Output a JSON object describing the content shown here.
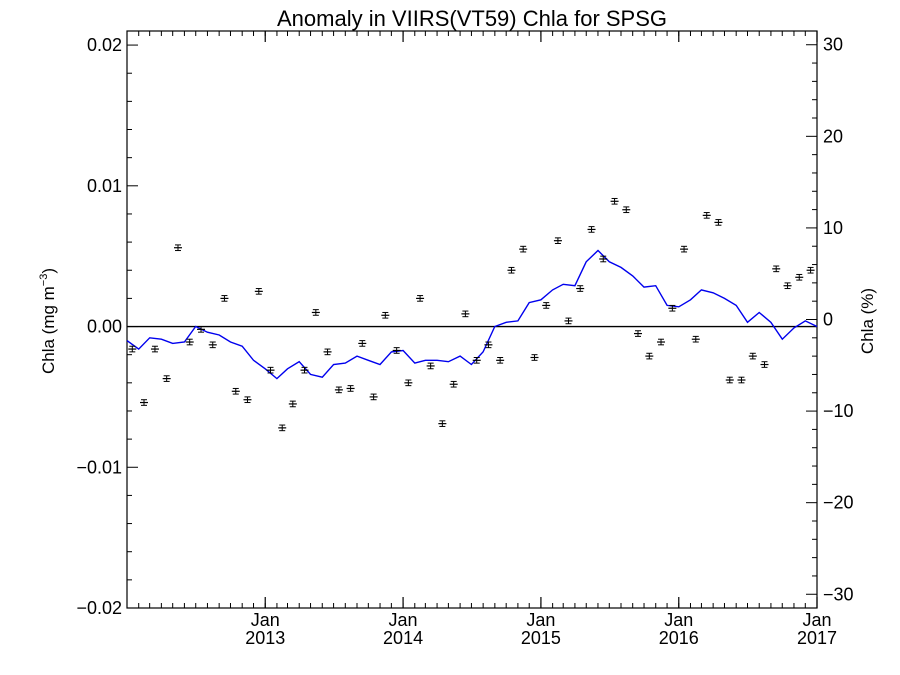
{
  "chart_data": {
    "type": "line",
    "title": "Anomaly in VIIRS(VT59) Chla for SPSG",
    "ylabel": "Chla (mg m",
    "ylabel_superscript": "−3",
    "ylabel_close": ")",
    "y2label": "Chla (%)",
    "xlim": [
      "2012-01-01",
      "2017-01-01"
    ],
    "ylim": [
      -0.02,
      0.021
    ],
    "y2lim": [
      -31.5,
      31.5
    ],
    "x_ticks": [
      {
        "date": "2013-01-01",
        "month": "Jan",
        "year": "2013"
      },
      {
        "date": "2014-01-01",
        "month": "Jan",
        "year": "2014"
      },
      {
        "date": "2015-01-01",
        "month": "Jan",
        "year": "2015"
      },
      {
        "date": "2016-01-01",
        "month": "Jan",
        "year": "2016"
      },
      {
        "date": "2017-01-01",
        "month": "Jan",
        "year": "2017"
      }
    ],
    "y_ticks": [
      {
        "value": 0.02,
        "label": "0.02"
      },
      {
        "value": 0.01,
        "label": "0.01"
      },
      {
        "value": 0.0,
        "label": "0.00"
      },
      {
        "value": -0.01,
        "label": "−0.01"
      },
      {
        "value": -0.02,
        "label": "−0.02"
      }
    ],
    "y2_ticks": [
      {
        "value": 30,
        "label": "30"
      },
      {
        "value": 20,
        "label": "20"
      },
      {
        "value": 10,
        "label": "10"
      },
      {
        "value": 0,
        "label": "0"
      },
      {
        "value": -10,
        "label": "−10"
      },
      {
        "value": -20,
        "label": "−20"
      },
      {
        "value": -30,
        "label": "−30"
      }
    ],
    "reference_line_y": 0,
    "grid": false,
    "legend": "none",
    "series": [
      {
        "kind": "line",
        "color": "#0000ee",
        "x": [
          "2012-01-01",
          "2012-02-01",
          "2012-03-01",
          "2012-04-01",
          "2012-05-01",
          "2012-06-01",
          "2012-07-01",
          "2012-08-01",
          "2012-09-01",
          "2012-10-01",
          "2012-11-01",
          "2012-12-01",
          "2013-01-01",
          "2013-02-01",
          "2013-03-01",
          "2013-04-01",
          "2013-05-01",
          "2013-06-01",
          "2013-07-01",
          "2013-08-01",
          "2013-09-01",
          "2013-10-01",
          "2013-11-01",
          "2013-12-01",
          "2014-01-01",
          "2014-02-01",
          "2014-03-01",
          "2014-04-01",
          "2014-05-01",
          "2014-06-01",
          "2014-07-01",
          "2014-08-01",
          "2014-09-01",
          "2014-10-01",
          "2014-11-01",
          "2014-12-01",
          "2015-01-01",
          "2015-02-01",
          "2015-03-01",
          "2015-04-01",
          "2015-05-01",
          "2015-06-01",
          "2015-07-01",
          "2015-08-01",
          "2015-09-01",
          "2015-10-01",
          "2015-11-01",
          "2015-12-01",
          "2016-01-01",
          "2016-02-01",
          "2016-03-01",
          "2016-04-01",
          "2016-05-01",
          "2016-06-01",
          "2016-07-01",
          "2016-08-01",
          "2016-09-01",
          "2016-10-01",
          "2016-11-01",
          "2016-12-01",
          "2017-01-01"
        ],
        "y": [
          -0.001,
          -0.0016,
          -0.0008,
          -0.0009,
          -0.0012,
          -0.0011,
          0.0,
          -0.0004,
          -0.0006,
          -0.0011,
          -0.0014,
          -0.0024,
          -0.003,
          -0.0037,
          -0.003,
          -0.0025,
          -0.0034,
          -0.0036,
          -0.0027,
          -0.0026,
          -0.0021,
          -0.0024,
          -0.0027,
          -0.0018,
          -0.0017,
          -0.0026,
          -0.0024,
          -0.0024,
          -0.0025,
          -0.0021,
          -0.0027,
          -0.0018,
          0.0,
          0.0003,
          0.0004,
          0.0017,
          0.0019,
          0.0026,
          0.003,
          0.0029,
          0.0046,
          0.0054,
          0.0046,
          0.0042,
          0.0036,
          0.0028,
          0.0029,
          0.0015,
          0.0014,
          0.0019,
          0.0026,
          0.0024,
          0.002,
          0.0015,
          0.0003,
          0.001,
          0.0003,
          -0.0009,
          -0.0001,
          0.0004,
          0.0
        ]
      },
      {
        "kind": "points_with_error_bars",
        "color": "#000000",
        "error": 0.0002,
        "x": [
          "2012-01-15",
          "2012-02-15",
          "2012-03-15",
          "2012-04-15",
          "2012-05-15",
          "2012-06-15",
          "2012-07-15",
          "2012-08-15",
          "2012-09-15",
          "2012-10-15",
          "2012-11-15",
          "2012-12-15",
          "2013-01-15",
          "2013-02-15",
          "2013-03-15",
          "2013-04-15",
          "2013-05-15",
          "2013-06-15",
          "2013-07-15",
          "2013-08-15",
          "2013-09-15",
          "2013-10-15",
          "2013-11-15",
          "2013-12-15",
          "2014-01-15",
          "2014-02-15",
          "2014-03-15",
          "2014-04-15",
          "2014-05-15",
          "2014-06-15",
          "2014-07-15",
          "2014-08-15",
          "2014-09-15",
          "2014-10-15",
          "2014-11-15",
          "2014-12-15",
          "2015-01-15",
          "2015-02-15",
          "2015-03-15",
          "2015-04-15",
          "2015-05-15",
          "2015-06-15",
          "2015-07-15",
          "2015-08-15",
          "2015-09-15",
          "2015-10-15",
          "2015-11-15",
          "2015-12-15",
          "2016-01-15",
          "2016-02-15",
          "2016-03-15",
          "2016-04-15",
          "2016-05-15",
          "2016-06-15",
          "2016-07-15",
          "2016-08-15",
          "2016-09-15",
          "2016-10-15",
          "2016-11-15",
          "2016-12-15"
        ],
        "y": [
          -0.0016,
          -0.0054,
          -0.0016,
          -0.0037,
          0.0056,
          -0.0011,
          -0.0002,
          -0.0013,
          0.002,
          -0.0046,
          -0.0052,
          0.0025,
          -0.0031,
          -0.0072,
          -0.0055,
          -0.0031,
          0.001,
          -0.0018,
          -0.0045,
          -0.0044,
          -0.0012,
          -0.005,
          0.0008,
          -0.0017,
          -0.004,
          0.002,
          -0.0028,
          -0.0069,
          -0.0041,
          0.0009,
          -0.0024,
          -0.0013,
          -0.0024,
          0.004,
          0.0055,
          -0.0022,
          0.0015,
          0.0061,
          0.0004,
          0.0027,
          0.0069,
          0.0048,
          0.0089,
          0.0083,
          -0.0005,
          -0.0021,
          -0.0011,
          0.0013,
          0.0055,
          -0.0009,
          0.0079,
          0.0074,
          -0.0038,
          -0.0038,
          -0.0021,
          -0.0027,
          0.0041,
          0.0029,
          0.0035,
          0.004
        ]
      }
    ]
  }
}
